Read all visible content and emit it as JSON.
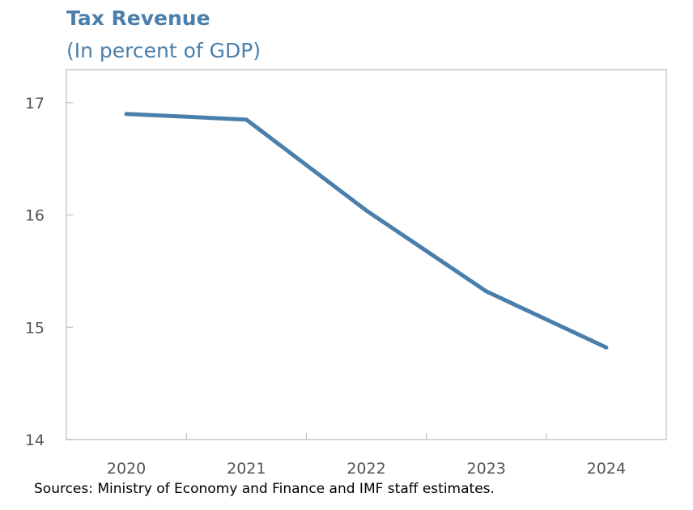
{
  "chart_data": {
    "type": "line",
    "title": "Tax Revenue",
    "subtitle": "(In percent of GDP)",
    "xlabel": "",
    "ylabel": "",
    "categories": [
      "2020",
      "2021",
      "2022",
      "2023",
      "2024"
    ],
    "series": [
      {
        "name": "Tax Revenue",
        "values": [
          16.9,
          16.85,
          16.04,
          15.32,
          14.82
        ],
        "color": "#4a7fab"
      }
    ],
    "ylim": [
      14,
      17.3
    ],
    "yticks": [
      14,
      15,
      16,
      17
    ],
    "grid": false,
    "legend": "none",
    "source": "Sources: Ministry of Economy and Finance and IMF staff estimates."
  },
  "colors": {
    "line": "#4a7fab",
    "title": "#4a7fab",
    "axis": "#bfbfbf",
    "tick_text": "#555555"
  }
}
